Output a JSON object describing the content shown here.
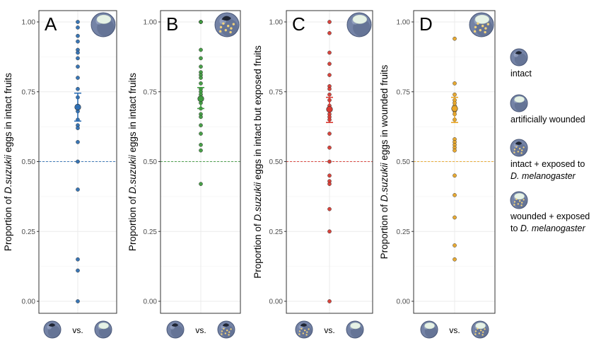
{
  "chart_data": [
    {
      "type": "scatter",
      "panel_letter": "A",
      "ylabel_pre": "Proportion of ",
      "ylabel_species": "D.suzukii",
      "ylabel_post": " eggs in intact fruits",
      "yticks": [
        "0.00",
        "0.25",
        "0.50",
        "0.75",
        "1.00"
      ],
      "ylim": [
        0,
        1
      ],
      "reference_line": 0.5,
      "color": "#2f6fb3",
      "points": [
        1.0,
        0.98,
        0.95,
        0.93,
        0.9,
        0.89,
        0.87,
        0.84,
        0.8,
        0.76,
        0.73,
        0.7,
        0.69,
        0.68,
        0.65,
        0.63,
        0.62,
        0.57,
        0.5,
        0.4,
        0.15,
        0.11,
        0.0
      ],
      "mean": 0.695,
      "error": [
        0.645,
        0.745
      ],
      "comparison": [
        "intact",
        "wounded"
      ],
      "vs_label": "vs."
    },
    {
      "type": "scatter",
      "panel_letter": "B",
      "ylabel_pre": "Proportion of ",
      "ylabel_species": "D.suzukii",
      "ylabel_post": " eggs in intact fruits",
      "yticks": [
        "0.00",
        "0.25",
        "0.50",
        "0.75",
        "1.00"
      ],
      "ylim": [
        0,
        1
      ],
      "reference_line": 0.5,
      "color": "#3f9a3f",
      "points": [
        1.0,
        1.0,
        1.0,
        0.9,
        0.87,
        0.84,
        0.82,
        0.81,
        0.8,
        0.78,
        0.76,
        0.75,
        0.74,
        0.72,
        0.71,
        0.69,
        0.67,
        0.66,
        0.63,
        0.6,
        0.56,
        0.54,
        0.42
      ],
      "mean": 0.725,
      "error": [
        0.69,
        0.765
      ],
      "comparison": [
        "intact",
        "intact_exposed"
      ],
      "vs_label": "vs."
    },
    {
      "type": "scatter",
      "panel_letter": "C",
      "ylabel_pre": "Proportion of ",
      "ylabel_species": "D.suzukii",
      "ylabel_post": " eggs in intact but exposed fruits",
      "yticks": [
        "0.00",
        "0.25",
        "0.50",
        "0.75",
        "1.00"
      ],
      "ylim": [
        0,
        1
      ],
      "reference_line": 0.5,
      "color": "#d93a32",
      "points": [
        1.0,
        0.96,
        0.89,
        0.85,
        0.81,
        0.77,
        0.76,
        0.74,
        0.72,
        0.7,
        0.67,
        0.66,
        0.65,
        0.6,
        0.55,
        0.5,
        0.45,
        0.43,
        0.42,
        0.33,
        0.25,
        0.0
      ],
      "mean": 0.687,
      "error": [
        0.64,
        0.73
      ],
      "comparison": [
        "intact_exposed",
        "wounded"
      ],
      "vs_label": "vs."
    },
    {
      "type": "scatter",
      "panel_letter": "D",
      "ylabel_pre": "Proportion of ",
      "ylabel_species": "D.suzukii",
      "ylabel_post": " eggs in wounded fruits",
      "yticks": [
        "0.00",
        "0.25",
        "0.50",
        "0.75",
        "1.00"
      ],
      "ylim": [
        0,
        1
      ],
      "reference_line": 0.5,
      "color": "#e8a628",
      "points": [
        0.94,
        0.78,
        0.74,
        0.72,
        0.71,
        0.7,
        0.69,
        0.68,
        0.67,
        0.65,
        0.58,
        0.57,
        0.56,
        0.55,
        0.54,
        0.45,
        0.38,
        0.3,
        0.2,
        0.15
      ],
      "mean": 0.69,
      "error": [
        0.64,
        0.73
      ],
      "comparison": [
        "wounded",
        "wounded_exposed"
      ],
      "vs_label": "vs."
    }
  ],
  "legend": [
    {
      "icon": "intact",
      "lines": [
        "intact"
      ],
      "italic": []
    },
    {
      "icon": "wounded",
      "lines": [
        "artificially wounded"
      ],
      "italic": []
    },
    {
      "icon": "intact_exposed",
      "lines": [
        "intact + exposed to",
        "D. melanogaster"
      ],
      "italic": [
        1
      ]
    },
    {
      "icon": "wounded_exposed",
      "lines": [
        "wounded + exposed",
        "to D. melanogaster"
      ],
      "italic": []
    }
  ],
  "colors": {
    "blueberry_dark": "#4a5878",
    "blueberry_mid": "#7483a6",
    "wound": "#e6f2e6",
    "egg": "#f2d27a",
    "grid_major": "#ebebeb",
    "grid_minor": "#f5f5f5",
    "panel_border": "#333333"
  }
}
